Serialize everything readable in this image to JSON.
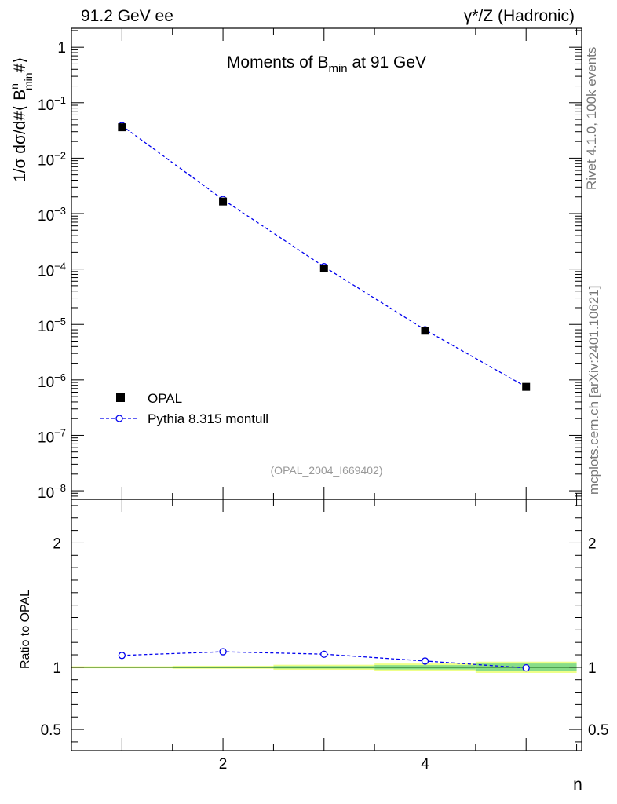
{
  "header": {
    "left": "91.2 GeV ee",
    "right": "γ*/Z (Hadronic)"
  },
  "side_labels": {
    "rivet": "Rivet 4.1.0,  100k events",
    "mcplots": "mcplots.cern.ch [arXiv:2401.10621]"
  },
  "colors": {
    "data": "#000000",
    "mc": "#0000ee",
    "band_inner": "#88dd88",
    "band_outer": "#eeff88"
  },
  "chart_data": [
    {
      "type": "scatter",
      "title_main": "Moments of B",
      "title_sub": "min",
      "title_suffix": " at 91 GeV",
      "ylabel": "1/σ  dσ/d#⟨ B",
      "ylabel_sup": "n",
      "ylabel_sub": "min",
      "ylabel_end": "#⟩",
      "yscale": "log",
      "ylim": [
        7e-09,
        2.2
      ],
      "xlim": [
        0.5,
        5.55
      ],
      "yticks": [
        {
          "v": 1,
          "base": "1",
          "exp": ""
        },
        {
          "v": 0.1,
          "base": "10",
          "exp": "−1"
        },
        {
          "v": 0.01,
          "base": "10",
          "exp": "−2"
        },
        {
          "v": 0.001,
          "base": "10",
          "exp": "−3"
        },
        {
          "v": 0.0001,
          "base": "10",
          "exp": "−4"
        },
        {
          "v": 1e-05,
          "base": "10",
          "exp": "−5"
        },
        {
          "v": 1e-06,
          "base": "10",
          "exp": "−6"
        },
        {
          "v": 1e-07,
          "base": "10",
          "exp": "−7"
        },
        {
          "v": 1e-08,
          "base": "10",
          "exp": "−8"
        }
      ],
      "series": [
        {
          "name": "OPAL",
          "style": "marker-square",
          "x": [
            1,
            2,
            3,
            4,
            5
          ],
          "y": [
            0.036,
            0.00165,
            0.000102,
            7.7e-06,
            7.5e-07
          ]
        },
        {
          "name": "Pythia 8.315 montull",
          "style": "open-circle-dashed",
          "x": [
            1,
            2,
            3,
            4,
            5
          ],
          "y": [
            0.0385,
            0.00179,
            0.00011,
            8e-06,
            7.5e-07
          ]
        }
      ],
      "legend": [
        "OPAL",
        "Pythia 8.315 montull"
      ],
      "legend_position": "lower-left",
      "watermark": "(OPAL_2004_I669402)"
    },
    {
      "type": "line",
      "ylabel": "Ratio to OPAL",
      "xlabel": "n",
      "ylim": [
        0.33,
        2.35
      ],
      "xlim": [
        0.5,
        5.55
      ],
      "yticks": [
        {
          "v": 0.5,
          "label": "0.5"
        },
        {
          "v": 1,
          "label": "1"
        },
        {
          "v": 2,
          "label": "2"
        }
      ],
      "xticks": [
        {
          "v": 2,
          "label": "2"
        },
        {
          "v": 4,
          "label": "4"
        }
      ],
      "reference": 1,
      "bands": [
        {
          "x0": 0.5,
          "x1": 1.5,
          "inner": 0.004,
          "outer": 0.008
        },
        {
          "x0": 1.5,
          "x1": 2.5,
          "inner": 0.006,
          "outer": 0.012
        },
        {
          "x0": 2.5,
          "x1": 3.5,
          "inner": 0.01,
          "outer": 0.02
        },
        {
          "x0": 3.5,
          "x1": 4.5,
          "inner": 0.017,
          "outer": 0.03
        },
        {
          "x0": 4.5,
          "x1": 5.5,
          "inner": 0.03,
          "outer": 0.045
        }
      ],
      "series": [
        {
          "name": "Pythia 8.315 montull",
          "x": [
            1,
            2,
            3,
            4,
            5
          ],
          "y": [
            1.095,
            1.125,
            1.105,
            1.05,
            0.995
          ]
        }
      ]
    }
  ]
}
